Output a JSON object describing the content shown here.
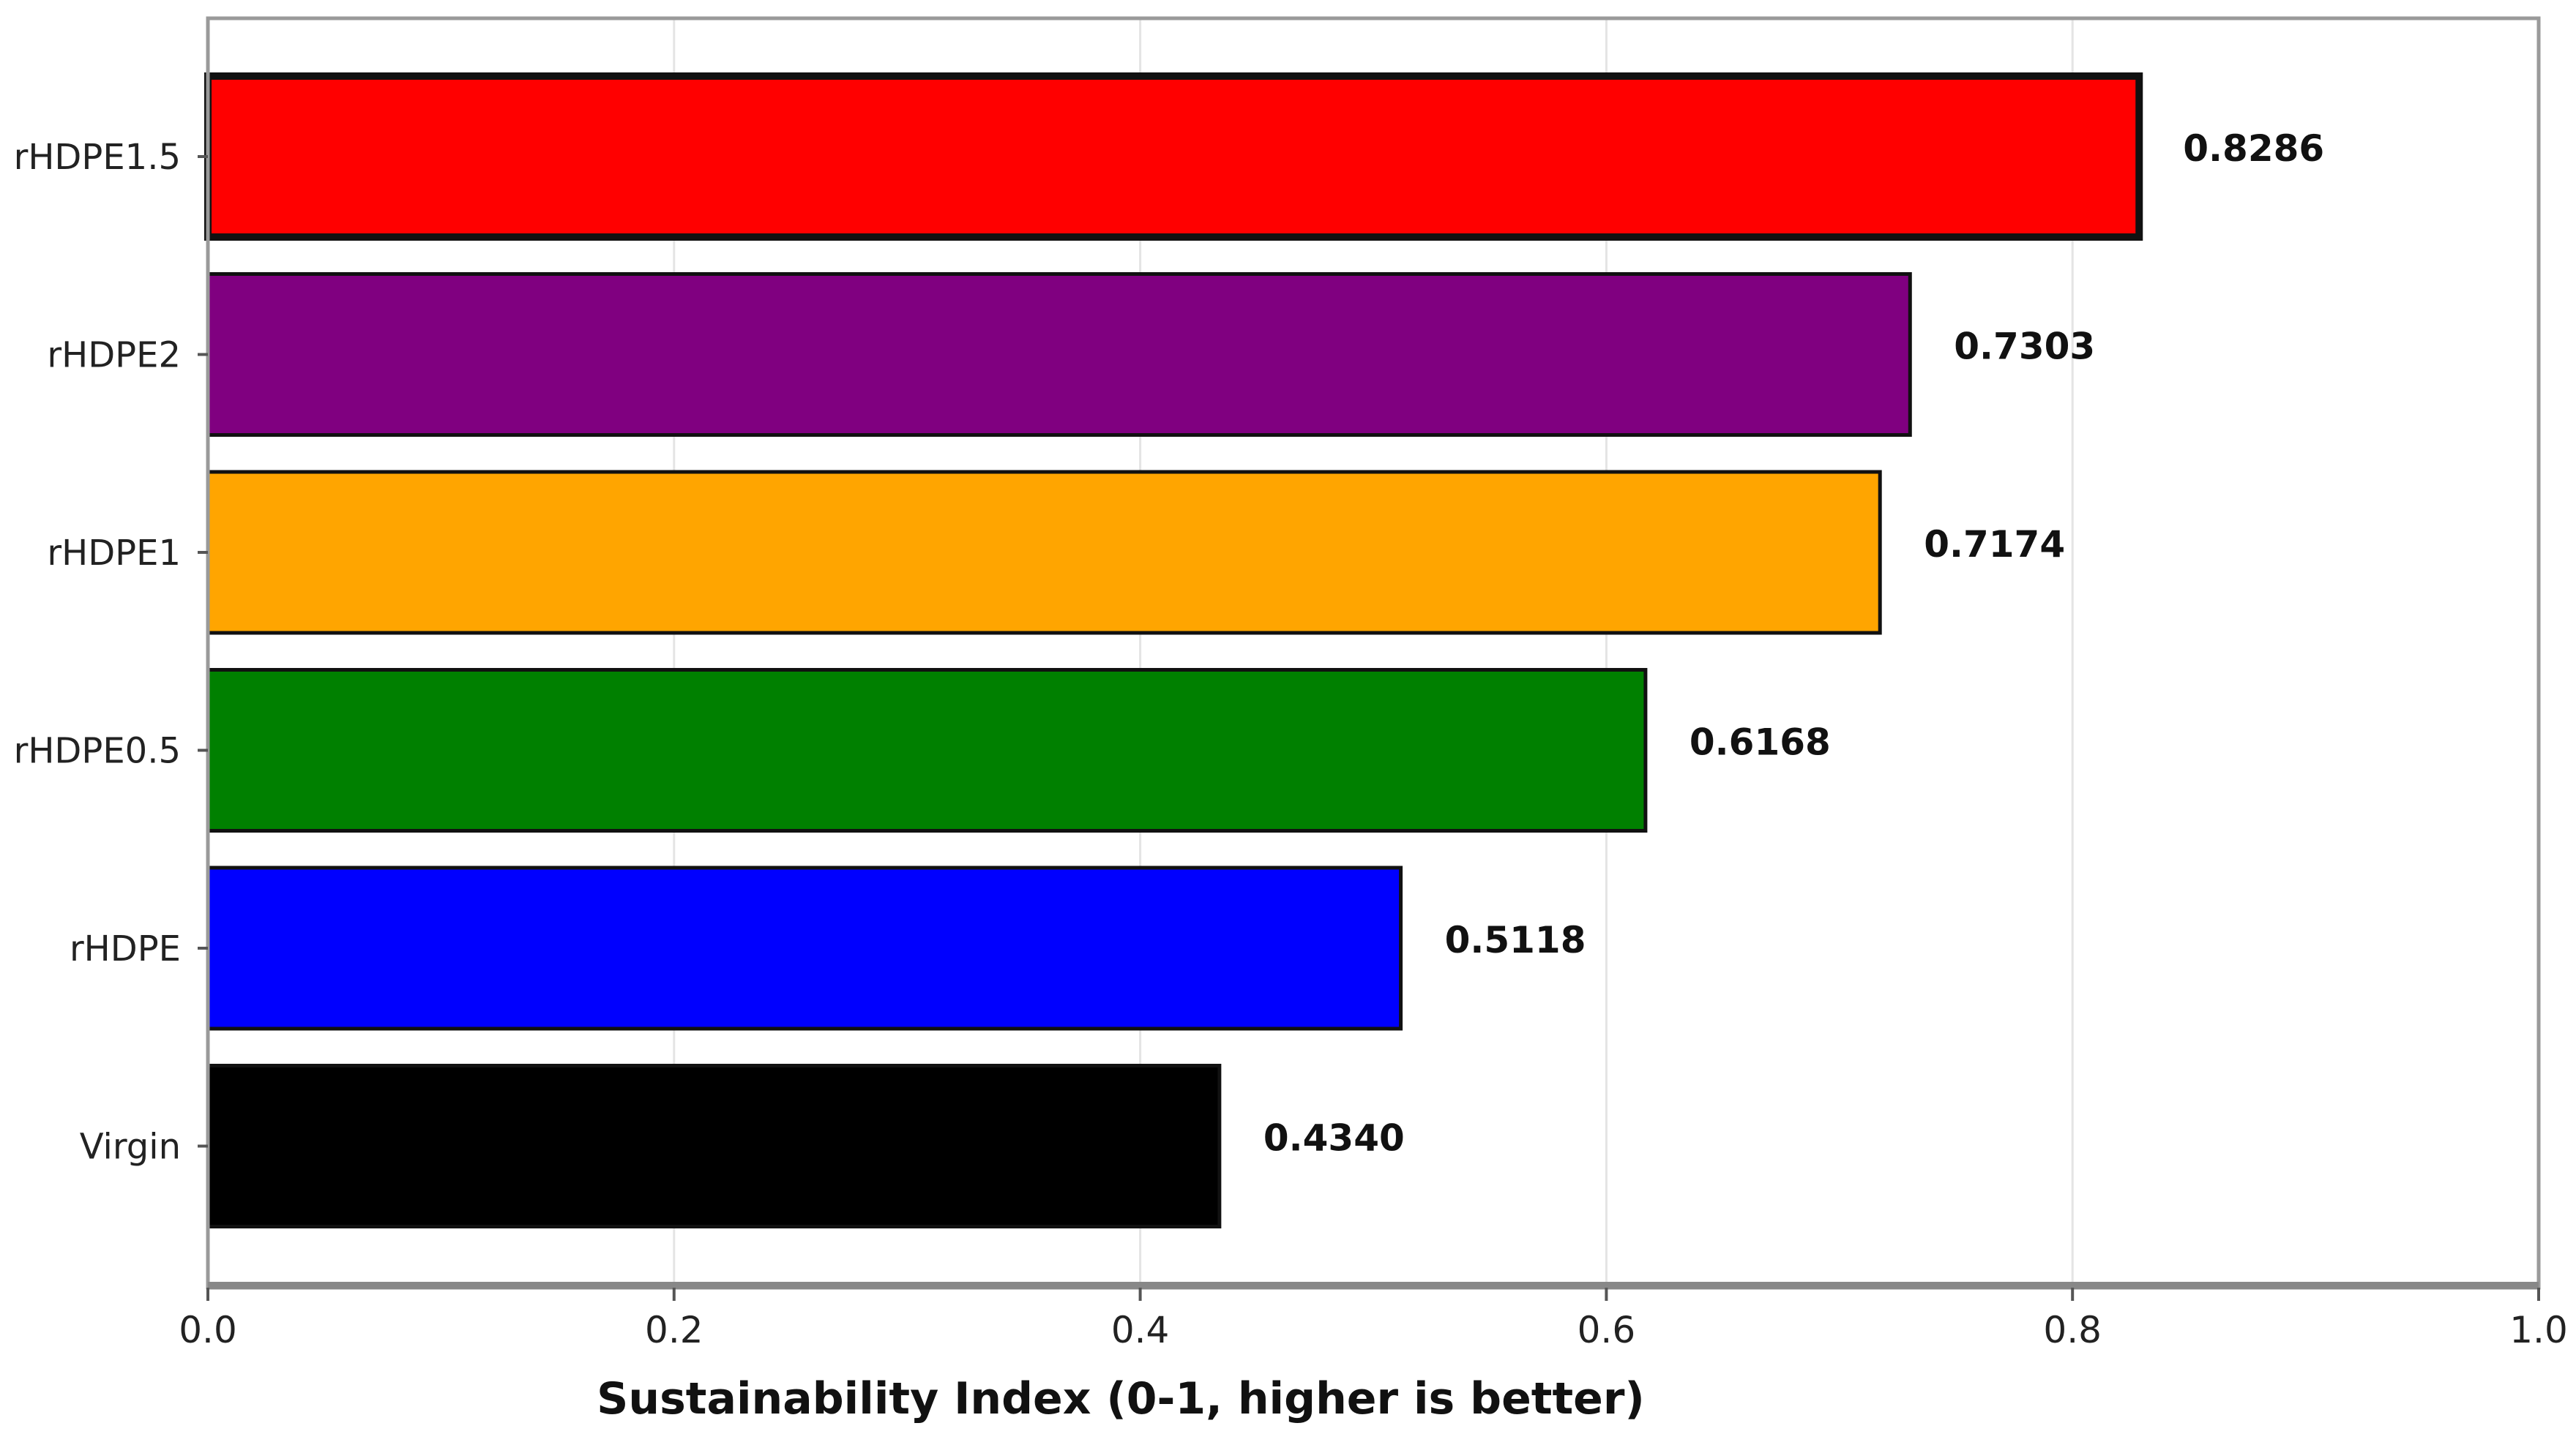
{
  "chart_data": {
    "type": "bar",
    "orientation": "horizontal",
    "title": "",
    "xlabel": "Sustainability Index (0-1, higher is better)",
    "ylabel": "",
    "xlim": [
      0.0,
      1.0
    ],
    "xticks": [
      0.0,
      0.2,
      0.4,
      0.6,
      0.8,
      1.0
    ],
    "xtick_labels": [
      "0.0",
      "0.2",
      "0.4",
      "0.6",
      "0.8",
      "1.0"
    ],
    "grid": "vertical",
    "categories": [
      "rHDPE1.5",
      "rHDPE2",
      "rHDPE1",
      "rHDPE0.5",
      "rHDPE",
      "Virgin"
    ],
    "values": [
      0.8286,
      0.7303,
      0.7174,
      0.6168,
      0.5118,
      0.434
    ],
    "value_labels": [
      "0.8286",
      "0.7303",
      "0.7174",
      "0.6168",
      "0.5118",
      "0.4340"
    ],
    "colors": [
      "#ff0000",
      "#800080",
      "#ffa500",
      "#008000",
      "#0000ff",
      "#000000"
    ],
    "highlighted": "rHDPE1.5"
  }
}
